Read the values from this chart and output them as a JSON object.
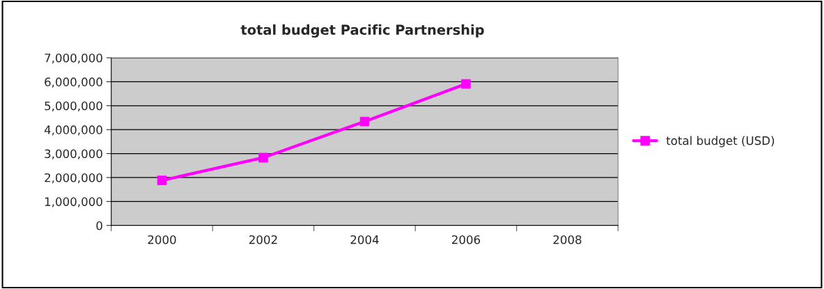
{
  "chart_data": {
    "type": "line",
    "title": "total budget Pacific Partnership",
    "categories": [
      "2000",
      "2002",
      "2004",
      "2006",
      "2008"
    ],
    "series": [
      {
        "name": "total budget (USD)",
        "color": "#ff00ff",
        "values": [
          1880000,
          2830000,
          4340000,
          5910000,
          null
        ]
      }
    ],
    "ylim": [
      0,
      7000000
    ],
    "yticks": [
      {
        "value": 0,
        "label": "0"
      },
      {
        "value": 1000000,
        "label": "1,000,000"
      },
      {
        "value": 2000000,
        "label": "2,000,000"
      },
      {
        "value": 3000000,
        "label": "3,000,000"
      },
      {
        "value": 4000000,
        "label": "4,000,000"
      },
      {
        "value": 5000000,
        "label": "5,000,000"
      },
      {
        "value": 6000000,
        "label": "6,000,000"
      },
      {
        "value": 7000000,
        "label": "7,000,000"
      }
    ],
    "grid": "y",
    "legend": "right",
    "marker": "square",
    "line_style": "solid"
  }
}
